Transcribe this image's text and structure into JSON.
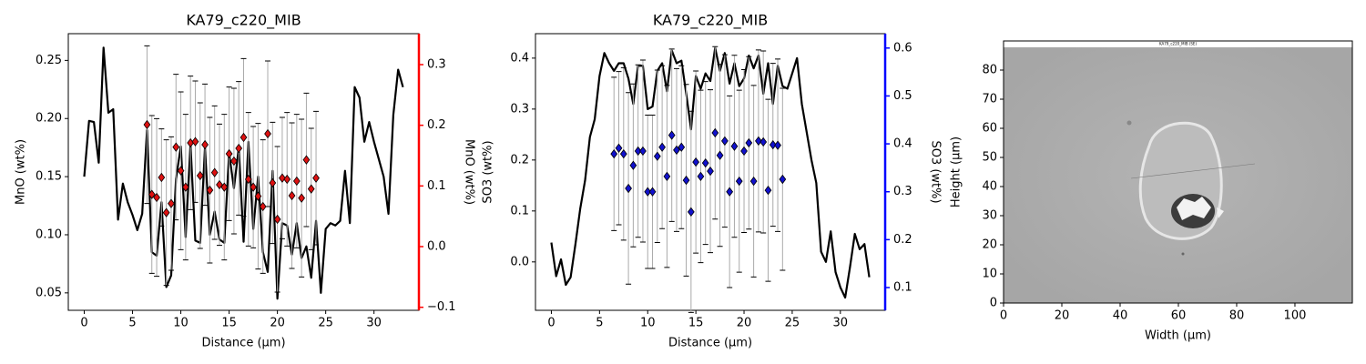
{
  "chart_data": [
    {
      "type": "line",
      "title": "KA79_c220_MIB",
      "xlabel": "Distance (µm)",
      "ylabel": "MnO (wt%)",
      "y2label": "MnO (wt%)",
      "y2color": "#ff0000",
      "x": [
        0,
        0.5,
        1,
        1.5,
        2,
        2.5,
        3,
        3.5,
        4,
        4.5,
        5,
        5.5,
        6,
        6.5,
        7,
        7.5,
        8,
        8.5,
        9,
        9.5,
        10,
        10.5,
        11,
        11.5,
        12,
        12.5,
        13,
        13.5,
        14,
        14.5,
        15,
        15.5,
        16,
        16.5,
        17,
        17.5,
        18,
        18.5,
        19,
        19.5,
        20,
        20.5,
        21,
        21.5,
        22,
        22.5,
        23,
        23.5,
        24,
        24.5,
        25,
        25.5,
        26,
        26.5,
        27,
        27.5,
        28,
        28.5,
        29,
        29.5,
        30,
        30.5,
        31,
        31.5,
        32,
        32.5,
        33
      ],
      "xlim": [
        -1.65,
        34.65
      ],
      "xticks": [
        0,
        5,
        10,
        15,
        20,
        25,
        30
      ],
      "ylim": [
        0.035,
        0.273
      ],
      "yticks": [
        0.05,
        {
          "value": 0.1,
          "label": "0.10"
        },
        0.15,
        {
          "value": 0.2,
          "label": "0.20"
        },
        0.25
      ],
      "y2lim": [
        -0.105,
        0.351
      ],
      "y2ticks": [
        {
          "value": -0.1,
          "label": "−0.1"
        },
        {
          "value": 0,
          "label": "0.0"
        },
        0.1,
        0.2,
        0.3
      ],
      "series": [
        {
          "color": "#000000",
          "values": [
            0.15,
            0.198,
            0.197,
            0.162,
            0.261,
            0.205,
            0.208,
            0.113,
            0.144,
            0.128,
            0.117,
            0.104,
            0.118,
            0.19,
            0.085,
            0.082,
            0.128,
            0.055,
            0.065,
            0.148,
            0.176,
            0.098,
            0.178,
            0.095,
            0.093,
            0.175,
            0.1,
            0.12,
            0.096,
            0.093,
            0.17,
            0.14,
            0.175,
            0.094,
            0.18,
            0.105,
            0.15,
            0.085,
            0.068,
            0.155,
            0.045,
            0.11,
            0.108,
            0.083,
            0.11,
            0.08,
            0.09,
            0.063,
            0.112,
            0.05,
            0.105,
            0.11,
            0.108,
            0.112,
            0.155,
            0.11,
            0.227,
            0.218,
            0.18,
            0.197,
            0.18,
            0.165,
            0.15,
            0.118,
            0.203,
            0.242,
            0.227
          ]
        },
        {
          "axis": "y2",
          "color": "#dd1111",
          "marker": "diamond",
          "x": [
            6.5,
            7,
            7.5,
            8,
            8.5,
            9,
            9.5,
            10,
            10.5,
            11,
            11.5,
            12,
            12.5,
            13,
            13.5,
            14,
            14.5,
            15,
            15.5,
            16,
            16.5,
            17,
            17.5,
            18,
            18.5,
            19,
            19.5,
            20,
            20.5,
            21,
            21.5,
            22,
            22.5,
            23,
            23.5,
            24
          ],
          "values": [
            0.201,
            0.086,
            0.081,
            0.114,
            0.056,
            0.071,
            0.164,
            0.125,
            0.098,
            0.171,
            0.173,
            0.117,
            0.168,
            0.093,
            0.122,
            0.102,
            0.098,
            0.153,
            0.141,
            0.162,
            0.18,
            0.111,
            0.098,
            0.083,
            0.066,
            0.186,
            0.105,
            0.045,
            0.113,
            0.111,
            0.084,
            0.108,
            0.08,
            0.143,
            0.095,
            0.113
          ],
          "errors": [
            0.13,
            0.13,
            0.13,
            0.08,
            0.12,
            0.11,
            0.12,
            0.13,
            0.12,
            0.11,
            0.1,
            0.12,
            0.1,
            0.12,
            0.11,
            0.1,
            0.12,
            0.11,
            0.12,
            0.11,
            0.13,
            0.11,
            0.1,
            0.12,
            0.11,
            0.12,
            0.1,
            0.12,
            0.1,
            0.11,
            0.12,
            0.11,
            0.13,
            0.11,
            0.1,
            0.11
          ]
        }
      ]
    },
    {
      "type": "line",
      "title": "KA79_c220_MIB",
      "xlabel": "Distance (µm)",
      "ylabel": "SO3 (wt%)",
      "y2label": "SO3 (wt%)",
      "y2color": "#0000ff",
      "x": [
        0,
        0.5,
        1,
        1.5,
        2,
        2.5,
        3,
        3.5,
        4,
        4.5,
        5,
        5.5,
        6,
        6.5,
        7,
        7.5,
        8,
        8.5,
        9,
        9.5,
        10,
        10.5,
        11,
        11.5,
        12,
        12.5,
        13,
        13.5,
        14,
        14.5,
        15,
        15.5,
        16,
        16.5,
        17,
        17.5,
        18,
        18.5,
        19,
        19.5,
        20,
        20.5,
        21,
        21.5,
        22,
        22.5,
        23,
        23.5,
        24,
        24.5,
        25,
        25.5,
        26,
        26.5,
        27,
        27.5,
        28,
        28.5,
        29,
        29.5,
        30,
        30.5,
        31,
        31.5,
        32,
        32.5,
        33
      ],
      "xlim": [
        -1.65,
        34.65
      ],
      "xticks": [
        0,
        5,
        10,
        15,
        20,
        25,
        30
      ],
      "ylim": [
        -0.095,
        0.448
      ],
      "yticks": [
        {
          "value": 0,
          "label": "0.0"
        },
        0.1,
        0.2,
        0.3,
        0.4
      ],
      "y2lim": [
        0.0525,
        0.63
      ],
      "y2ticks": [
        0.1,
        0.2,
        0.3,
        0.4,
        0.5,
        0.6
      ],
      "series": [
        {
          "color": "#000000",
          "values": [
            0.038,
            -0.028,
            0.005,
            -0.045,
            -0.03,
            0.035,
            0.105,
            0.16,
            0.245,
            0.28,
            0.365,
            0.41,
            0.39,
            0.375,
            0.39,
            0.39,
            0.36,
            0.31,
            0.385,
            0.385,
            0.3,
            0.305,
            0.375,
            0.39,
            0.335,
            0.415,
            0.39,
            0.395,
            0.33,
            0.26,
            0.365,
            0.34,
            0.37,
            0.355,
            0.42,
            0.375,
            0.41,
            0.35,
            0.39,
            0.345,
            0.36,
            0.405,
            0.38,
            0.405,
            0.33,
            0.39,
            0.31,
            0.385,
            0.345,
            0.34,
            0.37,
            0.4,
            0.31,
            0.255,
            0.2,
            0.155,
            0.02,
            0.0,
            0.06,
            -0.02,
            -0.05,
            -0.07,
            -0.01,
            0.055,
            0.025,
            0.035,
            -0.03
          ]
        },
        {
          "axis": "y2",
          "color": "#1111cc",
          "marker": "diamond",
          "x": [
            6.5,
            7,
            7.5,
            8,
            8.5,
            9,
            9.5,
            10,
            10.5,
            11,
            11.5,
            12,
            12.5,
            13,
            13.5,
            14,
            14.5,
            15,
            15.5,
            16,
            16.5,
            17,
            17.5,
            18,
            18.5,
            19,
            19.5,
            20,
            20.5,
            21,
            21.5,
            22,
            22.5,
            23,
            23.5,
            24
          ],
          "values": [
            0.379,
            0.391,
            0.379,
            0.307,
            0.355,
            0.385,
            0.385,
            0.3,
            0.3,
            0.374,
            0.393,
            0.332,
            0.418,
            0.387,
            0.393,
            0.324,
            0.258,
            0.362,
            0.332,
            0.36,
            0.343,
            0.423,
            0.376,
            0.406,
            0.3,
            0.395,
            0.322,
            0.385,
            0.402,
            0.322,
            0.406,
            0.404,
            0.303,
            0.398,
            0.397,
            0.326
          ],
          "errors": [
            0.16,
            0.16,
            0.18,
            0.2,
            0.17,
            0.18,
            0.19,
            0.16,
            0.16,
            0.18,
            0.17,
            0.19,
            0.18,
            0.17,
            0.17,
            0.2,
            0.21,
            0.19,
            0.18,
            0.17,
            0.17,
            0.18,
            0.19,
            0.18,
            0.2,
            0.19,
            0.19,
            0.17,
            0.18,
            0.2,
            0.19,
            0.19,
            0.19,
            0.17,
            0.18,
            0.19
          ]
        }
      ]
    },
    {
      "type": "image",
      "image_title": "KA79_c220_MIB (SE)",
      "xlabel": "Width (µm)",
      "ylabel": "Height (µm)",
      "xlim": [
        0,
        119.7
      ],
      "xticks": [
        0,
        20,
        40,
        60,
        80,
        100
      ],
      "ylim": [
        0,
        90
      ],
      "yticks": [
        0,
        10,
        20,
        30,
        40,
        50,
        60,
        70,
        80
      ]
    }
  ]
}
